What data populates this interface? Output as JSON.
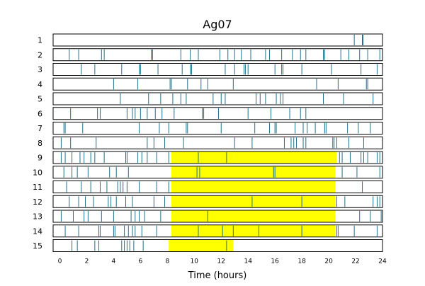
{
  "chart_data": {
    "type": "raster",
    "title": "Ag07",
    "xlabel": "Time (hours)",
    "ylabel": "",
    "xlim": [
      -0.5,
      24
    ],
    "xticks": [
      0,
      2,
      4,
      6,
      8,
      10,
      12,
      14,
      16,
      18,
      20,
      22,
      24
    ],
    "colors": {
      "event": "#1f6f8b",
      "highlight": "#ffff00",
      "frame": "#000000"
    },
    "rows": [
      {
        "label": "1",
        "highlight": null,
        "events": [
          21.9,
          22.5,
          22.55
        ]
      },
      {
        "label": "2",
        "highlight": null,
        "events": [
          0.7,
          1.4,
          3.1,
          3.3,
          6.8,
          6.9,
          9.0,
          9.7,
          10.3,
          11.9,
          12.5,
          13.0,
          13.5,
          14.2,
          15.3,
          15.6,
          16.5,
          17.3,
          17.9,
          18.3,
          19.6,
          19.7,
          20.9,
          21.5,
          22.3,
          22.9,
          23.8
        ]
      },
      {
        "label": "3",
        "highlight": null,
        "events": [
          1.6,
          2.6,
          4.6,
          5.9,
          6.0,
          7.3,
          9.1,
          9.7,
          9.8,
          12.3,
          13.0,
          13.7,
          13.8,
          14.0,
          16.0,
          16.5,
          16.6,
          18.0,
          20.2,
          22.4,
          23.6
        ]
      },
      {
        "label": "4",
        "highlight": null,
        "events": [
          4.0,
          5.8,
          8.2,
          8.3,
          9.5,
          10.5,
          11.0,
          12.9,
          19.1,
          20.7,
          22.8,
          22.9
        ]
      },
      {
        "label": "5",
        "highlight": null,
        "events": [
          4.5,
          6.6,
          7.5,
          8.4,
          9.0,
          9.4,
          11.4,
          12.0,
          12.3,
          14.6,
          14.9,
          15.3,
          16.1,
          16.4,
          16.6,
          19.6,
          21.1,
          23.3
        ]
      },
      {
        "label": "6",
        "highlight": null,
        "events": [
          0.8,
          2.8,
          3.0,
          5.0,
          5.4,
          5.6,
          6.0,
          6.5,
          7.1,
          7.6,
          8.5,
          10.6,
          10.7,
          11.8,
          14.0,
          15.7,
          17.1,
          17.9,
          18.3
        ]
      },
      {
        "label": "7",
        "highlight": null,
        "events": [
          0.3,
          0.4,
          1.7,
          5.9,
          7.4,
          8.1,
          9.4,
          9.5,
          12.0,
          14.5,
          15.6,
          16.0,
          16.1,
          17.5,
          18.1,
          18.4,
          19.0,
          19.7,
          19.8,
          21.4,
          22.2,
          23.1
        ]
      },
      {
        "label": "8",
        "highlight": null,
        "events": [
          0.1,
          0.8,
          2.7,
          6.5,
          7.0,
          7.8,
          9.2,
          13.0,
          14.3,
          16.7,
          17.2,
          17.4,
          17.6,
          18.1,
          18.3,
          20.3,
          20.4,
          20.6,
          21.5,
          22.6
        ]
      },
      {
        "label": "9",
        "highlight": [
          8.3,
          20.6
        ],
        "events": [
          0.1,
          0.4,
          0.9,
          1.5,
          1.8,
          2.3,
          2.6,
          3.3,
          4.9,
          5.0,
          5.8,
          6.1,
          6.5,
          7.2,
          8.1,
          10.3,
          12.4,
          20.8,
          21.0,
          21.6,
          22.4,
          22.6,
          22.9,
          23.6,
          23.8
        ]
      },
      {
        "label": "10",
        "highlight": [
          8.3,
          20.5
        ],
        "events": [
          0.3,
          0.9,
          1.3,
          2.1,
          3.7,
          4.2,
          5.1,
          10.2,
          10.4,
          15.9,
          16.0,
          21.0,
          22.1,
          23.8
        ]
      },
      {
        "label": "11",
        "highlight": [
          8.3,
          20.5
        ],
        "events": [
          0.5,
          1.6,
          2.3,
          3.0,
          3.5,
          4.3,
          4.5,
          4.7,
          5.0,
          5.9,
          7.2,
          8.1,
          22.5
        ]
      },
      {
        "label": "12",
        "highlight": [
          8.3,
          20.5
        ],
        "events": [
          0.7,
          1.4,
          1.9,
          2.5,
          3.6,
          3.8,
          4.2,
          4.9,
          5.4,
          7.0,
          7.8,
          14.3,
          18.0,
          20.6,
          21.2,
          23.3,
          23.6,
          23.8
        ]
      },
      {
        "label": "13",
        "highlight": [
          8.3,
          20.5
        ],
        "events": [
          0.1,
          1.0,
          1.8,
          2.1,
          3.1,
          4.0,
          5.3,
          5.6,
          5.9,
          6.3,
          7.5,
          11.0,
          22.3,
          23.1,
          23.9
        ]
      },
      {
        "label": "14",
        "highlight": [
          8.3,
          20.5
        ],
        "events": [
          0.4,
          1.4,
          2.9,
          3.0,
          4.0,
          4.1,
          4.8,
          5.1,
          5.4,
          5.6,
          6.1,
          7.2,
          10.3,
          12.1,
          12.9,
          14.8,
          18.0,
          20.6,
          20.7,
          21.9,
          23.6
        ]
      },
      {
        "label": "15",
        "highlight": [
          8.1,
          12.9
        ],
        "events": [
          0.9,
          1.3,
          2.6,
          2.9,
          4.6,
          4.8,
          5.0,
          5.2,
          5.5,
          6.2,
          12.4
        ]
      }
    ]
  }
}
